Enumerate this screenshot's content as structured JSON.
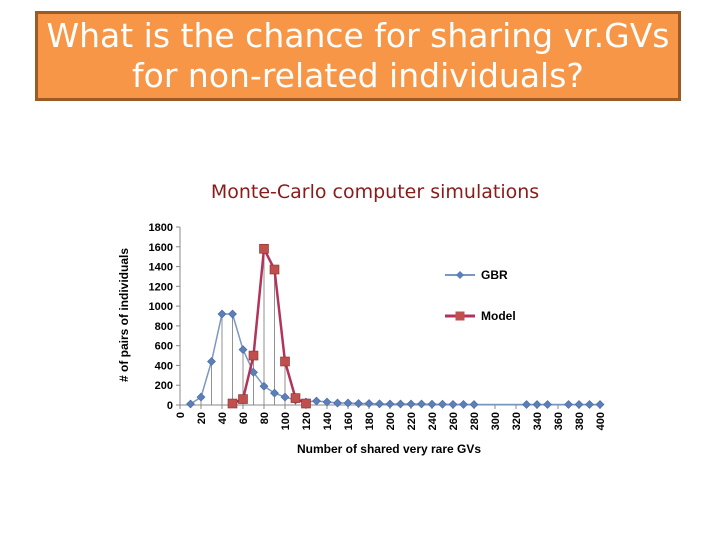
{
  "slide": {
    "title": "What is the chance for sharing vr.GVs\nfor non-related individuals?",
    "subtitle": "Monte-Carlo computer simulations"
  },
  "colors": {
    "title_fill": "#f79646",
    "title_border": "#9c5b25",
    "subtitle": "#8b1a1a",
    "gbr": "#7c96c4",
    "gbr_marker": "#5b7fba",
    "model": "#b2345b",
    "model_marker": "#c0504d"
  },
  "chart_data": {
    "type": "line",
    "title": "",
    "xlabel": "Number of shared very rare GVs",
    "ylabel": "# of pairs of individuals",
    "xlim": [
      0,
      400
    ],
    "ylim": [
      0,
      1800
    ],
    "y_ticks": [
      0,
      200,
      400,
      600,
      800,
      1000,
      1200,
      1400,
      1600,
      1800
    ],
    "x_ticks": [
      0,
      20,
      40,
      60,
      80,
      100,
      120,
      140,
      160,
      180,
      200,
      220,
      240,
      260,
      280,
      300,
      320,
      340,
      360,
      380,
      400
    ],
    "drop_lines": true,
    "legend_position": "right",
    "series": [
      {
        "name": "GBR",
        "marker": "diamond",
        "x": [
          10,
          20,
          30,
          40,
          50,
          60,
          70,
          80,
          90,
          100,
          110,
          120,
          130,
          140,
          150,
          160,
          170,
          180,
          190,
          200,
          210,
          220,
          230,
          240,
          250,
          260,
          270,
          280,
          330,
          340,
          350,
          370,
          380,
          390,
          400
        ],
        "y": [
          10,
          80,
          440,
          920,
          920,
          560,
          330,
          190,
          120,
          80,
          50,
          30,
          40,
          30,
          20,
          20,
          15,
          15,
          12,
          10,
          10,
          10,
          10,
          8,
          8,
          6,
          6,
          5,
          5,
          5,
          5,
          5,
          5,
          5,
          5
        ]
      },
      {
        "name": "Model",
        "marker": "square",
        "x": [
          50,
          60,
          70,
          80,
          90,
          100,
          110,
          120
        ],
        "y": [
          15,
          60,
          500,
          1580,
          1370,
          440,
          70,
          15
        ]
      }
    ]
  }
}
